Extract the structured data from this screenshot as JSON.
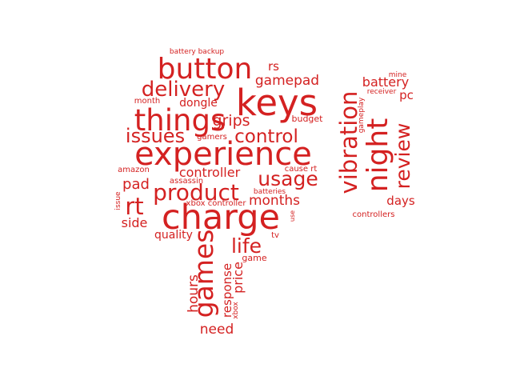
{
  "word_color": "#d42121",
  "words": [
    {
      "text": "keys"
    },
    {
      "text": "charge"
    },
    {
      "text": "experience"
    },
    {
      "text": "things"
    },
    {
      "text": "button"
    },
    {
      "text": "product"
    },
    {
      "text": "night"
    },
    {
      "text": "games"
    },
    {
      "text": "vibration"
    },
    {
      "text": "review"
    },
    {
      "text": "delivery"
    },
    {
      "text": "usage"
    },
    {
      "text": "issues"
    },
    {
      "text": "control"
    },
    {
      "text": "life"
    },
    {
      "text": "rt"
    },
    {
      "text": "grips"
    },
    {
      "text": "gamepad"
    },
    {
      "text": "months"
    },
    {
      "text": "pad"
    },
    {
      "text": "controller"
    },
    {
      "text": "battery"
    },
    {
      "text": "hours"
    },
    {
      "text": "need"
    },
    {
      "text": "price"
    },
    {
      "text": "response"
    },
    {
      "text": "side"
    },
    {
      "text": "quality"
    },
    {
      "text": "days"
    },
    {
      "text": "dongle"
    },
    {
      "text": "rs"
    },
    {
      "text": "pc"
    },
    {
      "text": "game"
    },
    {
      "text": "budget"
    },
    {
      "text": "month"
    },
    {
      "text": "tv"
    },
    {
      "text": "gamers"
    },
    {
      "text": "xbox controller"
    },
    {
      "text": "controllers"
    },
    {
      "text": "assassin"
    },
    {
      "text": "cause rt"
    },
    {
      "text": "amazon"
    },
    {
      "text": "batteries"
    },
    {
      "text": "battery backup"
    },
    {
      "text": "mine"
    },
    {
      "text": "receiver"
    },
    {
      "text": "gameplay"
    },
    {
      "text": "issue"
    },
    {
      "text": "use"
    },
    {
      "text": "xbox"
    }
  ]
}
